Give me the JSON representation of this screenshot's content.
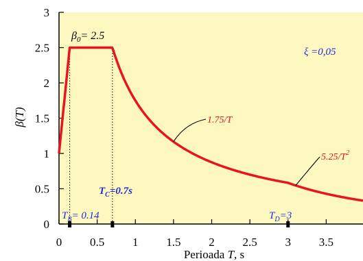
{
  "chart_data": {
    "type": "line",
    "title": "",
    "xlabel": "Perioada T, s",
    "ylabel": "β(T)",
    "xlim": [
      0,
      4
    ],
    "ylim": [
      0,
      3
    ],
    "x_ticks": [
      "0",
      "0.5",
      "1",
      "1.5",
      "2",
      "2.5",
      "3",
      "3.5",
      "4"
    ],
    "y_ticks": [
      "0",
      "0.5",
      "1",
      "1.5",
      "2",
      "2.5",
      "3"
    ],
    "grid": false,
    "background": "#fdf7c0",
    "curve_color": "#e8141e",
    "series": [
      {
        "points": [
          [
            0,
            1
          ],
          [
            0.14,
            2.5
          ],
          [
            0.7,
            2.5
          ],
          [
            1.0,
            1.75
          ],
          [
            1.5,
            1.1667
          ],
          [
            2.0,
            0.875
          ],
          [
            2.5,
            0.7
          ],
          [
            3.0,
            0.5833
          ],
          [
            3.5,
            0.4286
          ],
          [
            4.0,
            0.3281
          ]
        ]
      }
    ],
    "annotations": {
      "beta0": "β 0= 2.5",
      "xi": "ξ =0,05",
      "label_1_75": "1.75/T",
      "label_5_25": "5.25/T 2",
      "tc": "T C=0.7s",
      "tb": "T B= 0.14",
      "td": "T D=3"
    }
  }
}
